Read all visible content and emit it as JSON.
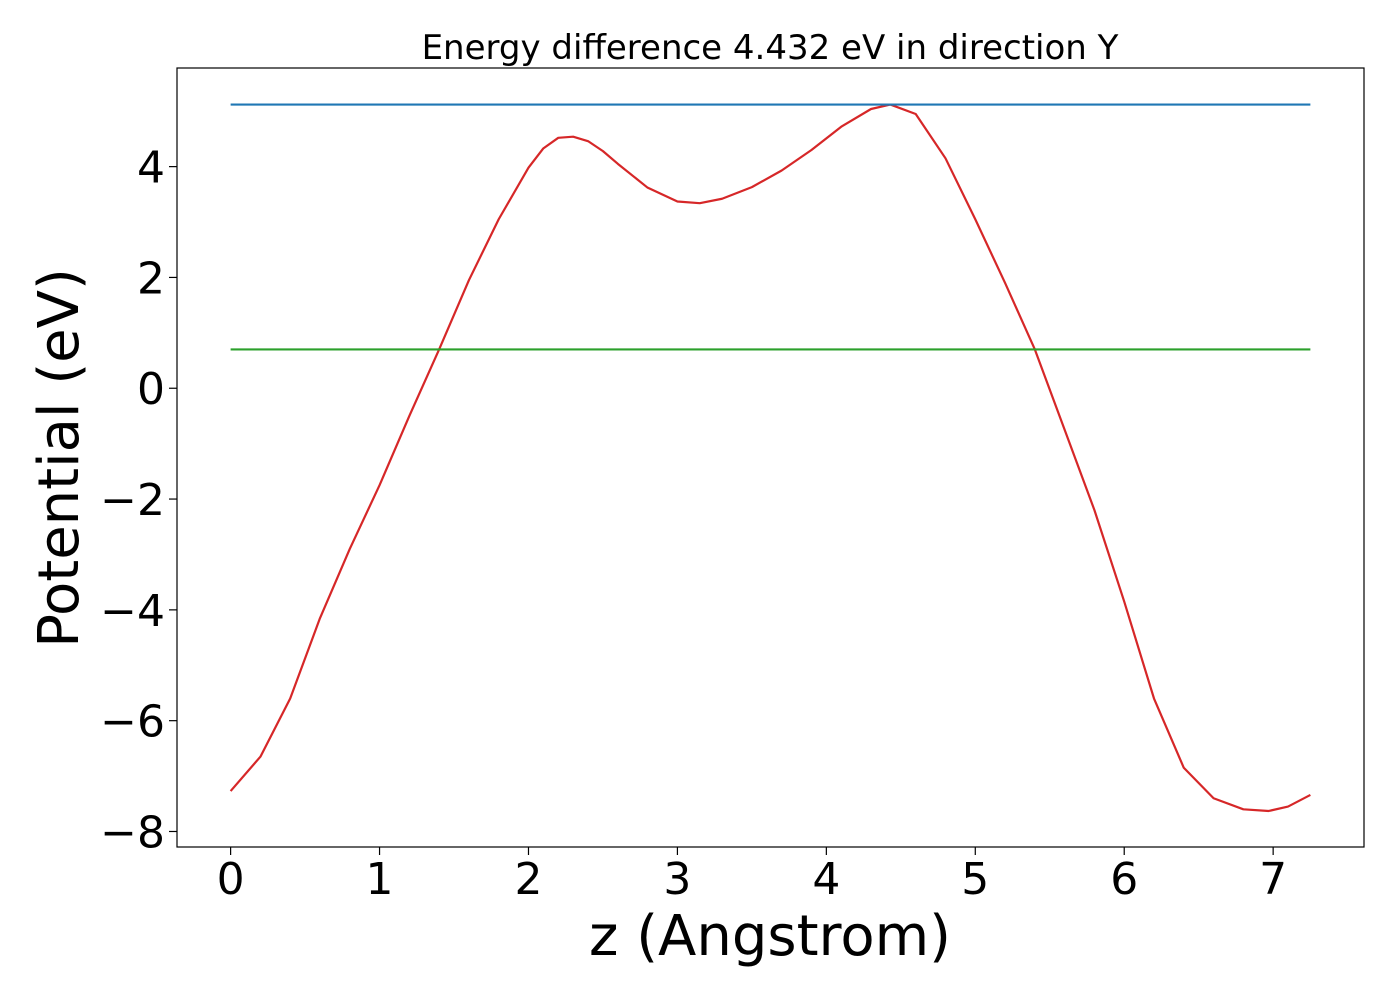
{
  "chart_data": {
    "type": "line",
    "title": "Energy difference 4.432 eV in direction Y",
    "xlabel": "z (Angstrom)",
    "ylabel": "Potential (eV)",
    "xlim": [
      -0.36,
      7.61
    ],
    "ylim": [
      -8.28,
      5.78
    ],
    "xticks": [
      0,
      1,
      2,
      3,
      4,
      5,
      6,
      7
    ],
    "xtick_labels": [
      "0",
      "1",
      "2",
      "3",
      "4",
      "5",
      "6",
      "7"
    ],
    "yticks": [
      -8,
      -6,
      -4,
      -2,
      0,
      2,
      4
    ],
    "ytick_labels": [
      "−8",
      "−6",
      "−4",
      "−2",
      "0",
      "2",
      "4"
    ],
    "grid": false,
    "legend": "none",
    "series": [
      {
        "color": "#d62728",
        "x": [
          0,
          0.2,
          0.4,
          0.6,
          0.8,
          1.0,
          1.2,
          1.4,
          1.6,
          1.8,
          2.0,
          2.1,
          2.2,
          2.3,
          2.4,
          2.5,
          2.6,
          2.8,
          3.0,
          3.15,
          3.3,
          3.5,
          3.7,
          3.9,
          4.1,
          4.3,
          4.43,
          4.6,
          4.8,
          5.0,
          5.2,
          5.4,
          5.6,
          5.8,
          6.0,
          6.2,
          6.4,
          6.6,
          6.8,
          6.97,
          7.1,
          7.25
        ],
        "y": [
          -7.27,
          -6.65,
          -5.6,
          -4.15,
          -2.9,
          -1.75,
          -0.5,
          0.7,
          1.95,
          3.05,
          3.98,
          4.33,
          4.52,
          4.54,
          4.46,
          4.28,
          4.05,
          3.62,
          3.37,
          3.34,
          3.42,
          3.63,
          3.93,
          4.3,
          4.72,
          5.04,
          5.12,
          4.95,
          4.15,
          3.05,
          1.9,
          0.7,
          -0.75,
          -2.2,
          -3.85,
          -5.6,
          -6.85,
          -7.4,
          -7.6,
          -7.63,
          -7.55,
          -7.34
        ]
      },
      {
        "color": "#1f77b4",
        "x": [
          0,
          7.25
        ],
        "y": [
          5.12,
          5.12
        ]
      },
      {
        "color": "#2ca02c",
        "x": [
          0,
          7.25
        ],
        "y": [
          0.7,
          0.7
        ]
      }
    ]
  }
}
